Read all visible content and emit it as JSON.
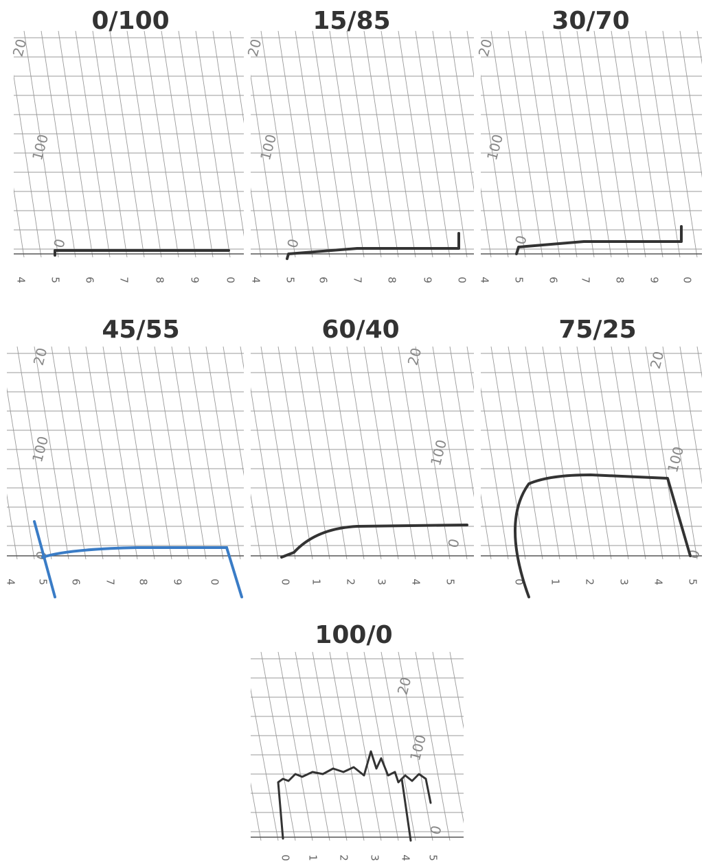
{
  "panels": [
    {
      "title": "0/100",
      "x_labels": [
        "4",
        "5",
        "6",
        "7",
        "8",
        "9",
        "0"
      ],
      "scale_labels": [
        "20",
        "100",
        "0"
      ]
    },
    {
      "title": "15/85",
      "x_labels": [
        "4",
        "5",
        "6",
        "7",
        "8",
        "9",
        "0"
      ],
      "scale_labels": [
        "20",
        "100",
        "0"
      ]
    },
    {
      "title": "30/70",
      "x_labels": [
        "4",
        "5",
        "6",
        "7",
        "8",
        "9",
        "0"
      ],
      "scale_labels": [
        "20",
        "100",
        "0"
      ]
    },
    {
      "title": "45/55",
      "x_labels": [
        "4",
        "5",
        "6",
        "7",
        "8",
        "9",
        "0"
      ],
      "scale_labels": [
        "20",
        "100",
        "0"
      ]
    },
    {
      "title": "60/40",
      "x_labels": [
        "0",
        "1",
        "2",
        "3",
        "4",
        "5"
      ],
      "scale_labels": [
        "20",
        "100",
        "0"
      ]
    },
    {
      "title": "75/25",
      "x_labels": [
        "0",
        "1",
        "2",
        "3",
        "4",
        "5"
      ],
      "scale_labels": [
        "20",
        "100",
        "0"
      ]
    },
    {
      "title": "100/0",
      "x_labels": [
        "0",
        "1",
        "2",
        "3",
        "4",
        "5"
      ],
      "scale_labels": [
        "20",
        "100",
        "0"
      ]
    }
  ]
}
